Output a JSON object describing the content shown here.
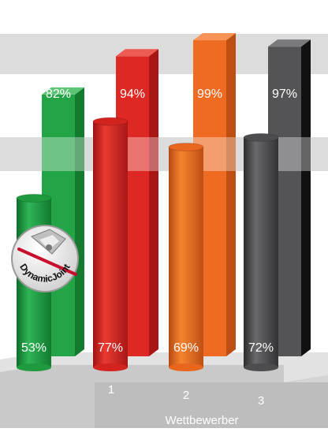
{
  "chart_data": {
    "type": "bar",
    "categories": [
      "",
      "1",
      "2",
      "3"
    ],
    "series": [
      {
        "values": [
          82,
          94,
          99,
          97
        ]
      },
      {
        "values": [
          53,
          77,
          69,
          72
        ]
      }
    ],
    "value_labels": {
      "back": [
        "82%",
        "94%",
        "99%",
        "97%"
      ],
      "front": [
        "53%",
        "77%",
        "69%",
        "72%"
      ]
    },
    "category_labels": [
      "1",
      "2",
      "3"
    ],
    "group_label": "Wettbewerber",
    "badge_text": "DynamicJoint",
    "colors": {
      "green": "#1f9a3f",
      "red": "#d3231f",
      "orange": "#e9661e",
      "gray": "#4d4d4f",
      "black": "#111111",
      "band": "#dcdcdc",
      "floor": "#e2e2e2"
    }
  }
}
